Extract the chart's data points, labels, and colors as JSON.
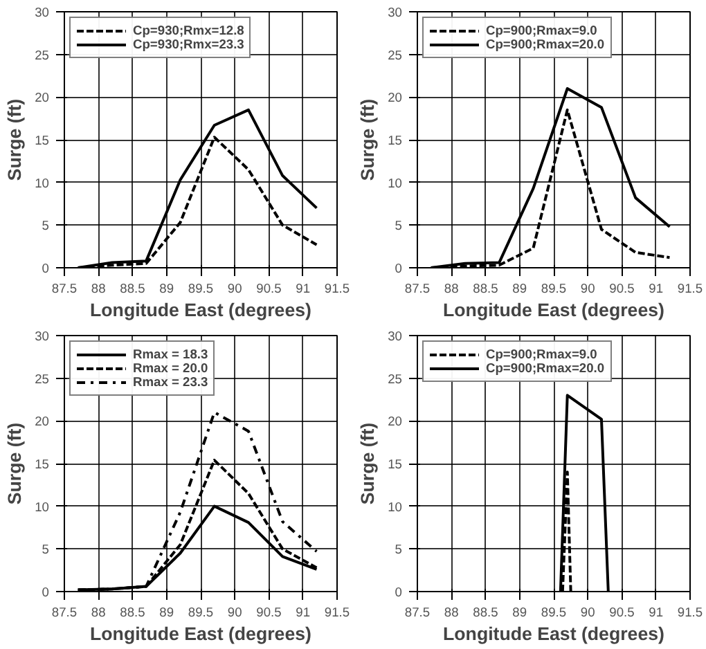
{
  "chart_data": [
    {
      "type": "line",
      "xlabel": "Longitude East (degrees)",
      "ylabel": "Surge (ft)",
      "xlim": [
        87.5,
        91.5
      ],
      "ylim": [
        0,
        30
      ],
      "xticks": [
        87.5,
        88,
        88.5,
        89,
        89.5,
        90,
        90.5,
        91,
        91.5
      ],
      "yticks": [
        0,
        5,
        10,
        15,
        20,
        25,
        30
      ],
      "grid": true,
      "legend": "top left",
      "x": [
        87.7,
        88.2,
        88.7,
        89.2,
        89.7,
        90.2,
        90.7,
        91.2
      ],
      "series": [
        {
          "name": "Cp=930;Rmx=12.8",
          "color": "#000000",
          "line_style": "dashed",
          "values": [
            0,
            0.3,
            0.5,
            5.3,
            15.3,
            11.5,
            5,
            2.7
          ]
        },
        {
          "name": "Cp=930;Rmx=23.3",
          "color": "#000000",
          "line_style": "solid",
          "values": [
            0,
            0.6,
            0.8,
            10.3,
            16.7,
            18.5,
            10.8,
            7
          ]
        }
      ]
    },
    {
      "type": "line",
      "xlabel": "Longitude East (degrees)",
      "ylabel": "Surge (ft)",
      "xlim": [
        87.5,
        91.5
      ],
      "ylim": [
        0,
        30
      ],
      "xticks": [
        87.5,
        88,
        88.5,
        89,
        89.5,
        90,
        90.5,
        91,
        91.5
      ],
      "yticks": [
        0,
        5,
        10,
        15,
        20,
        25,
        30
      ],
      "grid": true,
      "legend": "top left",
      "x": [
        87.7,
        88.2,
        88.7,
        89.2,
        89.7,
        90.2,
        90.7,
        91.2
      ],
      "series": [
        {
          "name": "Cp=900;Rmax=9.0",
          "color": "#000000",
          "line_style": "dashed",
          "values": [
            0,
            0.2,
            0.3,
            2.3,
            18.5,
            4.5,
            1.8,
            1.2
          ]
        },
        {
          "name": "Cp=900;Rmax=20.0",
          "color": "#000000",
          "line_style": "solid",
          "values": [
            0,
            0.5,
            0.6,
            9.3,
            21,
            18.8,
            8.2,
            4.8
          ]
        }
      ]
    },
    {
      "type": "line",
      "xlabel": "Longitude East (degrees)",
      "ylabel": "Surge (ft)",
      "xlim": [
        87.5,
        91.5
      ],
      "ylim": [
        0,
        30
      ],
      "xticks": [
        87.5,
        88,
        88.5,
        89,
        89.5,
        90,
        90.5,
        91,
        91.5
      ],
      "yticks": [
        0,
        5,
        10,
        15,
        20,
        25,
        30
      ],
      "grid": true,
      "legend": "top left",
      "x": [
        87.7,
        88.2,
        88.7,
        89.2,
        89.7,
        90.2,
        90.7,
        91.2
      ],
      "series": [
        {
          "name": "Rmax = 18.3",
          "color": "#000000",
          "line_style": "solid",
          "values": [
            0.2,
            0.3,
            0.6,
            4.5,
            10,
            8.1,
            4.1,
            2.6
          ]
        },
        {
          "name": "Rmax = 20.0",
          "color": "#000000",
          "line_style": "dashed",
          "values": [
            0.2,
            0.3,
            0.6,
            5.5,
            15.4,
            11.5,
            5,
            2.8
          ]
        },
        {
          "name": "Rmax = 23.3",
          "color": "#000000",
          "line_style": "dashdot",
          "values": [
            0.2,
            0.3,
            0.6,
            9.3,
            21,
            18.8,
            8.2,
            4.7
          ]
        }
      ]
    },
    {
      "type": "line",
      "xlabel": "Longitude East (degrees)",
      "ylabel": "Surge (ft)",
      "xlim": [
        87.5,
        91.5
      ],
      "ylim": [
        0,
        30
      ],
      "xticks": [
        87.5,
        88,
        88.5,
        89,
        89.5,
        90,
        90.5,
        91,
        91.5
      ],
      "yticks": [
        0,
        5,
        10,
        15,
        20,
        25,
        30
      ],
      "grid": true,
      "legend": "top left",
      "series": [
        {
          "name": "Cp=900;Rmax=9.0",
          "color": "#000000",
          "line_style": "dashed",
          "x": [
            89.63,
            89.7,
            89.75
          ],
          "values": [
            0,
            14,
            0
          ]
        },
        {
          "name": "Cp=900;Rmax=20.0",
          "color": "#000000",
          "line_style": "solid",
          "x": [
            89.6,
            89.7,
            90.2,
            90.3
          ],
          "values": [
            0,
            23,
            20.2,
            0
          ]
        }
      ]
    }
  ]
}
